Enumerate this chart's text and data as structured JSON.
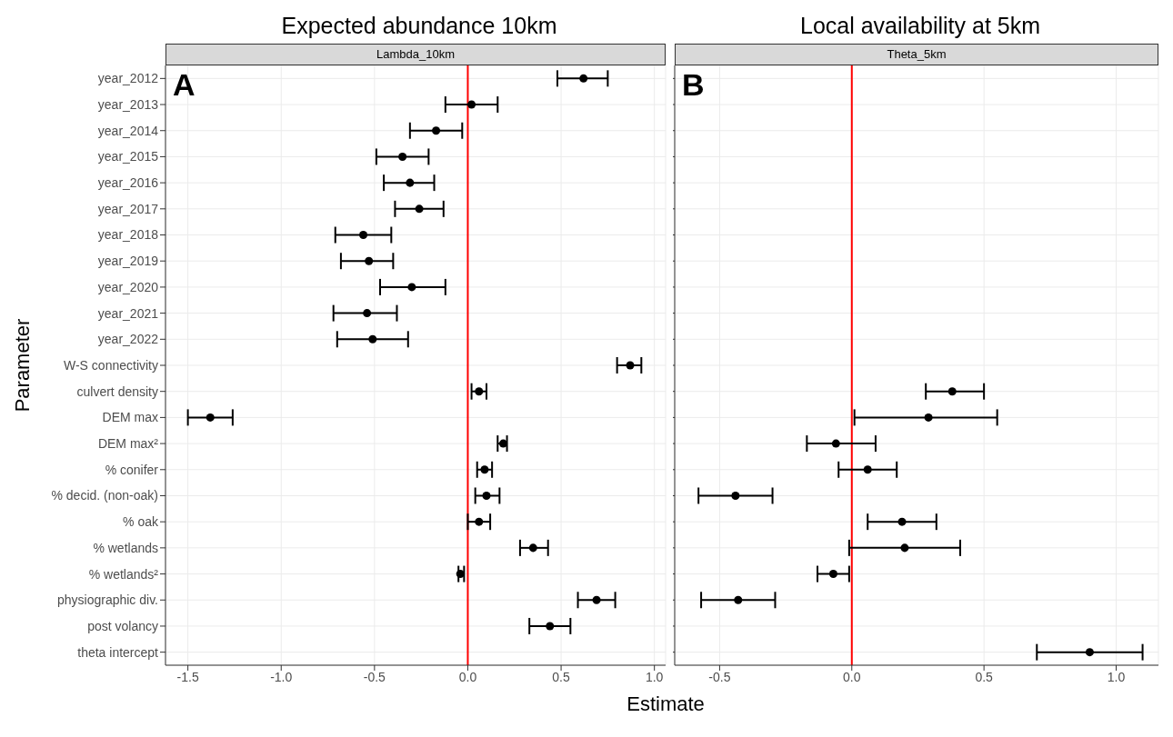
{
  "chart_data": [
    {
      "type": "scatter",
      "title": "Expected abundance 10km",
      "subtitle": "Lambda_10km",
      "xlabel": "Estimate",
      "ylabel": "Parameter",
      "orientation": "horizontal",
      "categories": [
        "year_2012",
        "year_2013",
        "year_2014",
        "year_2015",
        "year_2016",
        "year_2017",
        "year_2018",
        "year_2019",
        "year_2020",
        "year_2021",
        "year_2022",
        "W-S connectivity",
        "culvert density",
        "DEM max",
        "DEM max²",
        "% conifer",
        "% decid. (non-oak)",
        "% oak",
        "% wetlands",
        "% wetlands²",
        "physiographic div.",
        "post volancy",
        "theta intercept"
      ],
      "series": [
        {
          "color": "#000000",
          "values": [
            0.62,
            0.02,
            -0.17,
            -0.35,
            -0.31,
            -0.26,
            -0.56,
            -0.53,
            -0.3,
            -0.54,
            -0.51,
            0.87,
            0.06,
            -1.38,
            0.19,
            0.09,
            0.1,
            0.06,
            0.35,
            -0.04,
            0.69,
            0.44,
            null
          ],
          "errors": [
            [
              0.48,
              0.75
            ],
            [
              -0.12,
              0.16
            ],
            [
              -0.31,
              -0.03
            ],
            [
              -0.49,
              -0.21
            ],
            [
              -0.45,
              -0.18
            ],
            [
              -0.39,
              -0.13
            ],
            [
              -0.71,
              -0.41
            ],
            [
              -0.68,
              -0.4
            ],
            [
              -0.47,
              -0.12
            ],
            [
              -0.72,
              -0.38
            ],
            [
              -0.7,
              -0.32
            ],
            [
              0.8,
              0.93
            ],
            [
              0.02,
              0.1
            ],
            [
              -1.5,
              -1.26
            ],
            [
              0.16,
              0.21
            ],
            [
              0.05,
              0.13
            ],
            [
              0.04,
              0.17
            ],
            [
              0.0,
              0.12
            ],
            [
              0.28,
              0.43
            ],
            [
              -0.05,
              -0.02
            ],
            [
              0.59,
              0.79
            ],
            [
              0.33,
              0.55
            ],
            null
          ]
        }
      ],
      "xlim": [
        -1.62,
        1.06
      ],
      "xticks": [
        {
          "value": -1.5,
          "label": "-1.5"
        },
        {
          "value": -1,
          "label": "-1.0"
        },
        {
          "value": -0.5,
          "label": "-0.5"
        },
        {
          "value": 0,
          "label": "0.0"
        },
        {
          "value": 0.5,
          "label": "0.5"
        },
        {
          "value": 1,
          "label": "1.0"
        }
      ],
      "ref_lines": [
        {
          "axis": "x",
          "value": 0,
          "color": "#ff0000"
        }
      ],
      "annotations": [
        "A"
      ],
      "grid": true,
      "marker": "circle"
    },
    {
      "type": "scatter",
      "title": "Local availability at 5km",
      "subtitle": "Theta_5km",
      "orientation": "horizontal",
      "categories": [
        null,
        null,
        null,
        null,
        null,
        null,
        null,
        null,
        null,
        null,
        null,
        null,
        null,
        null,
        null,
        null,
        null,
        null,
        null,
        null,
        null,
        null,
        null
      ],
      "series": [
        {
          "color": "#000000",
          "values": [
            null,
            null,
            null,
            null,
            null,
            null,
            null,
            null,
            null,
            null,
            null,
            null,
            0.38,
            0.29,
            -0.06,
            0.06,
            -0.44,
            0.19,
            0.2,
            -0.07,
            -0.43,
            null,
            0.9
          ],
          "errors": [
            null,
            null,
            null,
            null,
            null,
            null,
            null,
            null,
            null,
            null,
            null,
            null,
            [
              0.28,
              0.5
            ],
            [
              0.01,
              0.55
            ],
            [
              -0.17,
              0.09
            ],
            [
              -0.05,
              0.17
            ],
            [
              -0.58,
              -0.3
            ],
            [
              0.06,
              0.32
            ],
            [
              -0.01,
              0.41
            ],
            [
              -0.13,
              -0.01
            ],
            [
              -0.57,
              -0.29
            ],
            null,
            [
              0.7,
              1.1
            ]
          ]
        }
      ],
      "xlim": [
        -0.67,
        1.16
      ],
      "xticks": [
        {
          "value": -0.5,
          "label": "-0.5"
        },
        {
          "value": 0,
          "label": "0.0"
        },
        {
          "value": 0.5,
          "label": "0.5"
        },
        {
          "value": 1,
          "label": "1.0"
        }
      ],
      "ref_lines": [
        {
          "axis": "x",
          "value": 0,
          "color": "#ff0000"
        }
      ],
      "annotations": [
        "B"
      ],
      "grid": true,
      "marker": "circle"
    }
  ]
}
